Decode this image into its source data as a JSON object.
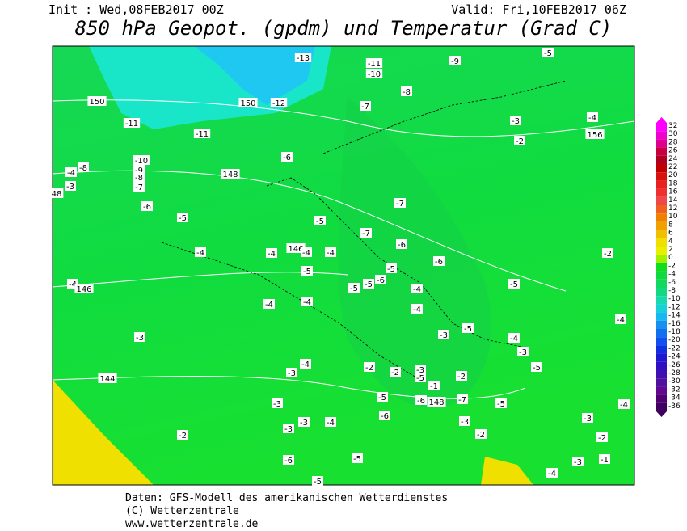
{
  "header": {
    "init": "Init : Wed,08FEB2017 00Z",
    "valid": "Valid: Fri,10FEB2017 06Z",
    "title": "850 hPa Geopot. (gpdm) und Temperatur (Grad C)"
  },
  "colorbar": {
    "labels": [
      "32",
      "30",
      "28",
      "26",
      "24",
      "22",
      "20",
      "18",
      "16",
      "14",
      "12",
      "10",
      "8",
      "6",
      "4",
      "2",
      "0",
      "-2",
      "-4",
      "-6",
      "-8",
      "-10",
      "-12",
      "-14",
      "-16",
      "-18",
      "-20",
      "-22",
      "-24",
      "-26",
      "-28",
      "-30",
      "-32",
      "-34",
      "-36"
    ]
  },
  "map": {
    "labels": [
      "-13",
      "-11",
      "-10",
      "-9",
      "-5",
      "150",
      "150",
      "-12",
      "-7",
      "-8",
      "-11",
      "-11",
      "-3",
      "-4",
      "156",
      "-2",
      "-10",
      "-6",
      "-8",
      "-4",
      "-9",
      "-8",
      "148",
      "-3",
      "-7",
      "48",
      "-6",
      "-7",
      "-5",
      "-5",
      "-7",
      "-6",
      "146",
      "-4",
      "-4",
      "-4",
      "-4",
      "-2",
      "-6",
      "-5",
      "-5",
      "-4",
      "-5",
      "-5",
      "-6",
      "-5",
      "146",
      "-4",
      "-4",
      "-4",
      "-4",
      "-4",
      "-5",
      "-3",
      "-4",
      "-3",
      "-3",
      "-4",
      "-2",
      "-5",
      "-3",
      "-2",
      "-3",
      "144",
      "-5",
      "-2",
      "148",
      "-1",
      "-5",
      "-6",
      "-7",
      "-5",
      "-4",
      "-3",
      "-6",
      "-3",
      "-4",
      "-3",
      "-3",
      "-3",
      "-2",
      "-2",
      "-2",
      "-6",
      "-5",
      "-3",
      "-1",
      "-4",
      "-5"
    ]
  },
  "footer": {
    "lines": [
      "Daten: GFS-Modell des amerikanischen Wetterdienstes",
      "(C) Wetterzentrale",
      "www.wetterzentrale.de"
    ]
  }
}
